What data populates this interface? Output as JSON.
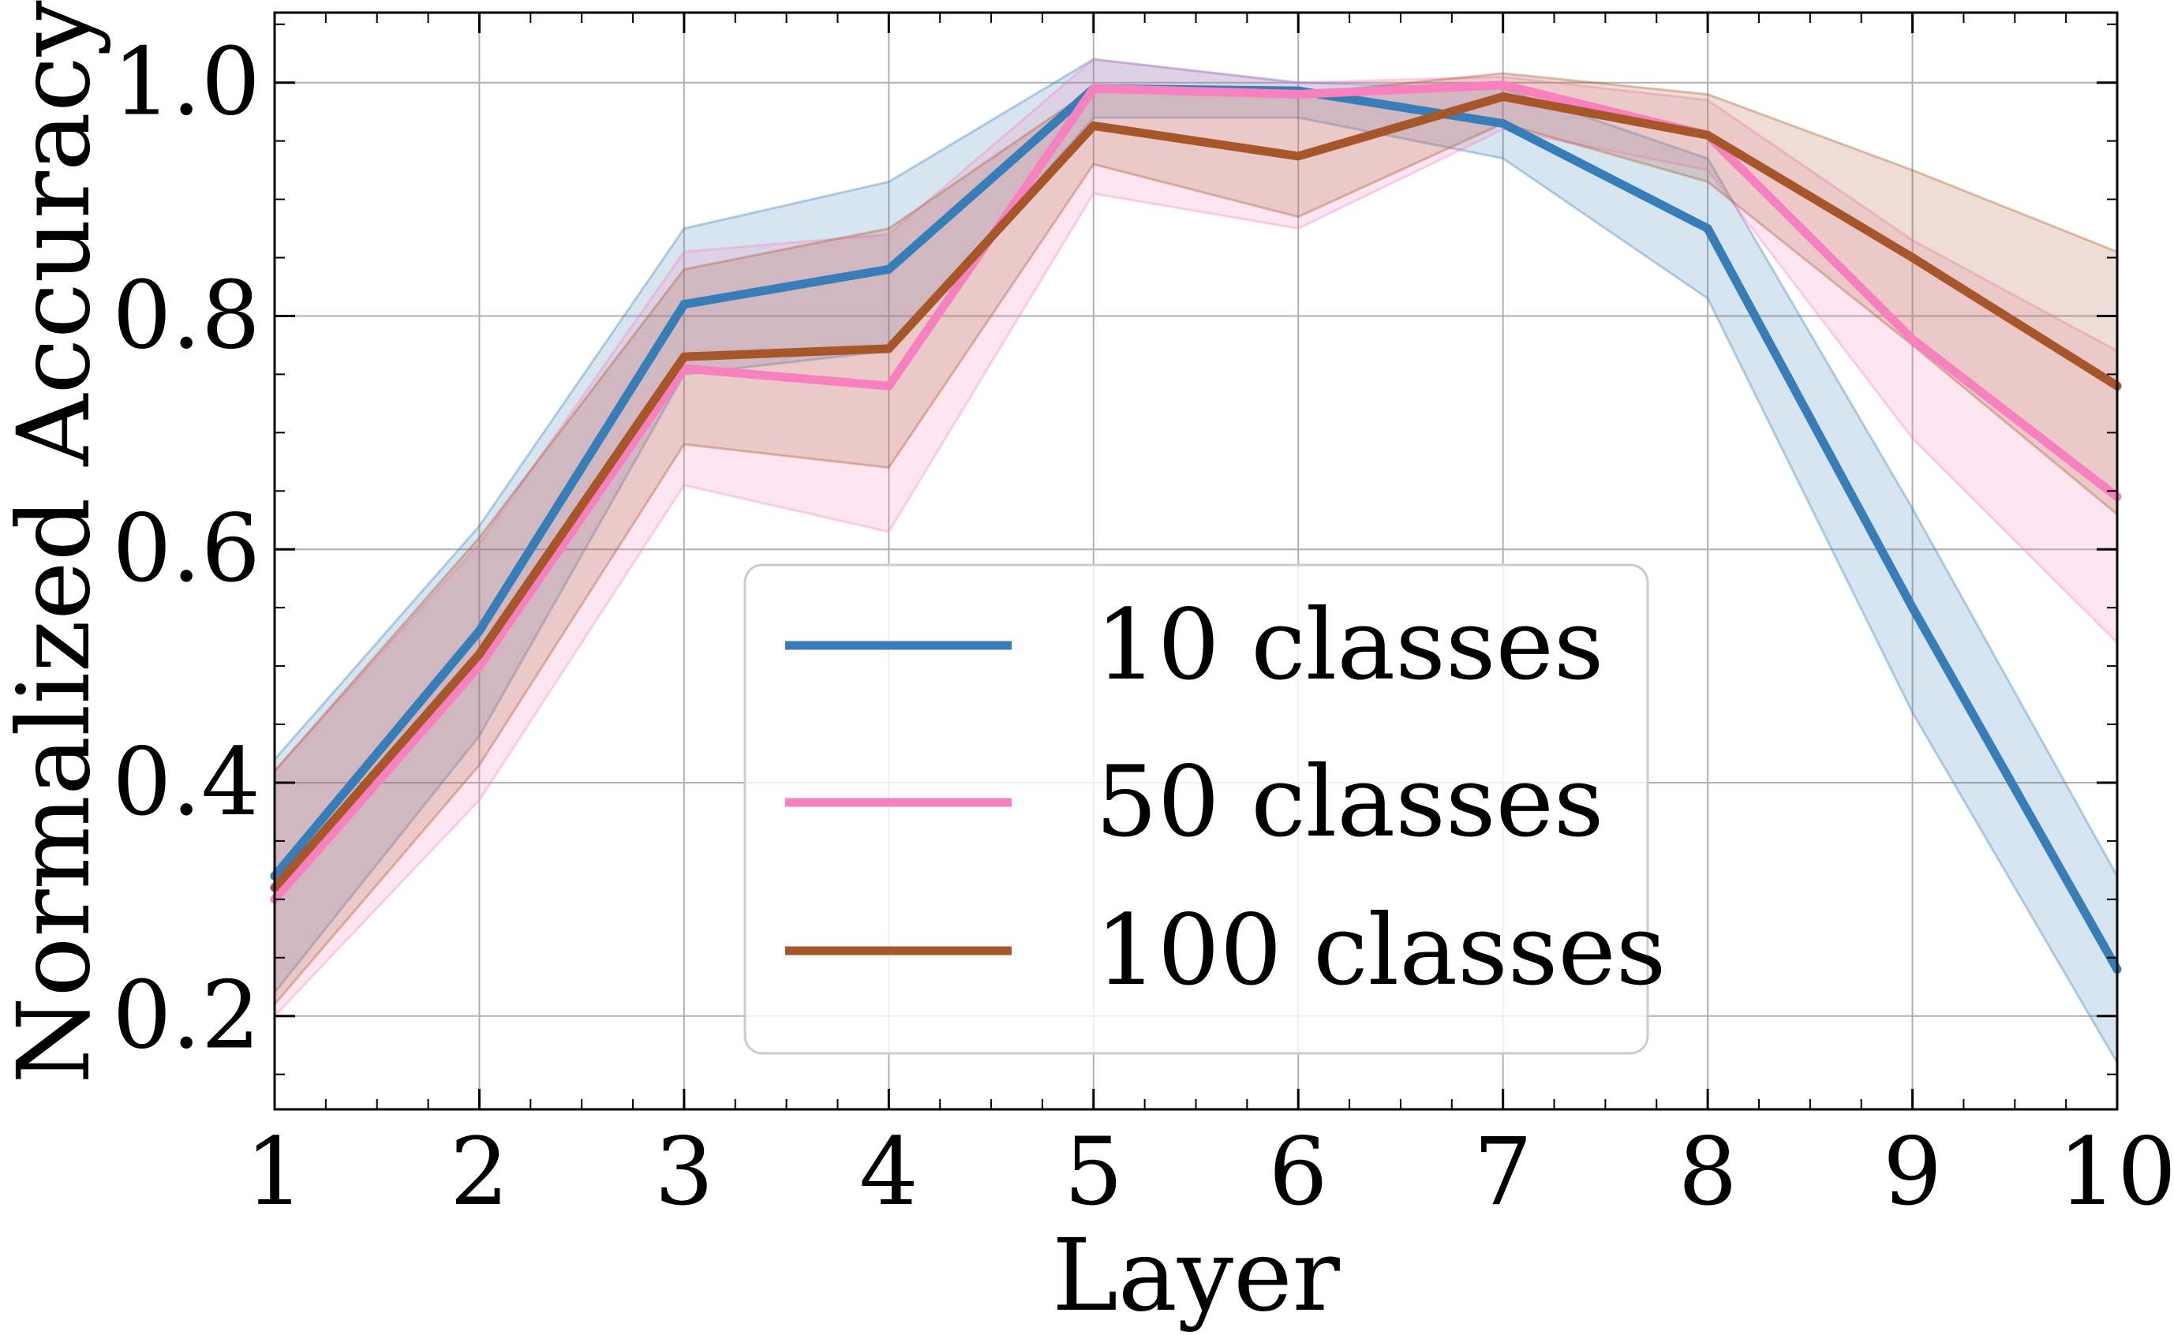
{
  "chart_data": {
    "type": "line",
    "title": "",
    "xlabel": "Layer",
    "ylabel": "Normalized Accuracy",
    "x": [
      1,
      2,
      3,
      4,
      5,
      6,
      7,
      8,
      9,
      10
    ],
    "xlim": [
      1,
      10
    ],
    "ylim": [
      0.12,
      1.06
    ],
    "xticks": [
      1,
      2,
      3,
      4,
      5,
      6,
      7,
      8,
      9,
      10
    ],
    "xtick_labels": [
      "1",
      "2",
      "3",
      "4",
      "5",
      "6",
      "7",
      "8",
      "9",
      "10"
    ],
    "yticks": [
      0.2,
      0.4,
      0.6,
      0.8,
      1.0
    ],
    "ytick_labels": [
      "0.2",
      "0.4",
      "0.6",
      "0.8",
      "1.0"
    ],
    "grid": true,
    "legend_position": "bottom-center",
    "series": [
      {
        "name": "10 classes",
        "color": "#377eb8",
        "values": [
          0.32,
          0.53,
          0.81,
          0.84,
          0.995,
          0.993,
          0.965,
          0.875,
          0.55,
          0.24
        ],
        "lower": [
          0.22,
          0.44,
          0.75,
          0.77,
          0.97,
          0.97,
          0.935,
          0.815,
          0.46,
          0.16
        ],
        "upper": [
          0.42,
          0.62,
          0.875,
          0.915,
          1.02,
          1.0,
          0.995,
          0.935,
          0.635,
          0.32
        ]
      },
      {
        "name": "50 classes",
        "color": "#f781bf",
        "values": [
          0.3,
          0.5,
          0.755,
          0.74,
          0.995,
          0.99,
          0.998,
          0.955,
          0.78,
          0.645
        ],
        "lower": [
          0.2,
          0.385,
          0.655,
          0.615,
          0.905,
          0.875,
          0.96,
          0.925,
          0.695,
          0.52
        ],
        "upper": [
          0.41,
          0.605,
          0.855,
          0.87,
          1.02,
          1.0,
          1.005,
          0.985,
          0.865,
          0.77
        ]
      },
      {
        "name": "100 classes",
        "color": "#a65628",
        "values": [
          0.31,
          0.51,
          0.765,
          0.772,
          0.963,
          0.937,
          0.988,
          0.955,
          0.85,
          0.74
        ],
        "lower": [
          0.21,
          0.415,
          0.69,
          0.67,
          0.93,
          0.885,
          0.965,
          0.915,
          0.775,
          0.63
        ],
        "upper": [
          0.41,
          0.61,
          0.84,
          0.875,
          0.995,
          0.99,
          1.008,
          0.99,
          0.925,
          0.855
        ]
      }
    ]
  }
}
